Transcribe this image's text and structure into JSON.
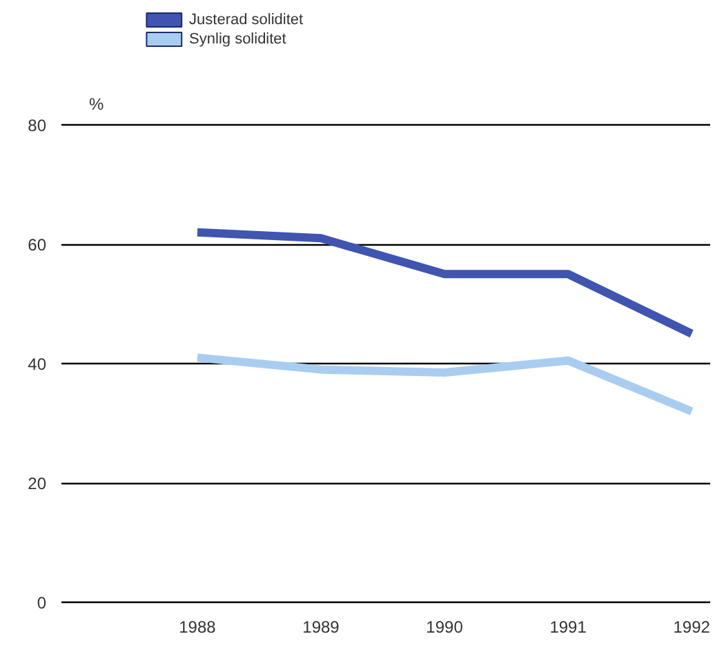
{
  "chart_data": {
    "type": "line",
    "ylabel": "%",
    "x": [
      1988,
      1989,
      1990,
      1991,
      1992
    ],
    "series": [
      {
        "name": "Justerad soliditet",
        "color": "#3f55b0",
        "values": [
          62,
          61,
          55,
          55,
          45
        ]
      },
      {
        "name": "Synlig soliditet",
        "color": "#a9cdf0",
        "values": [
          41,
          39,
          38.5,
          40.5,
          32
        ]
      }
    ],
    "xlim": [
      1986.9,
      1992.15
    ],
    "xticks": [
      1988,
      1989,
      1990,
      1991,
      1992
    ],
    "ylim": [
      0,
      80
    ],
    "yticks": [
      0,
      20,
      40,
      60,
      80
    ],
    "grid": "y",
    "legend": "top left",
    "marker": "none",
    "line_style": "solid"
  }
}
